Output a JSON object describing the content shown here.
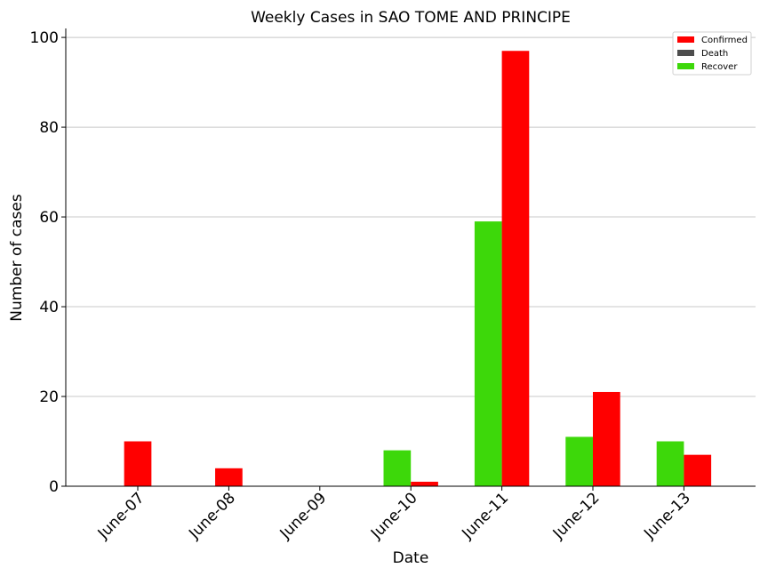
{
  "chart_data": {
    "type": "bar",
    "title": "Weekly Cases in SAO TOME AND PRINCIPE",
    "xlabel": "Date",
    "ylabel": "Number of cases",
    "categories": [
      "June-07",
      "June-08",
      "June-09",
      "June-10",
      "June-11",
      "June-12",
      "June-13"
    ],
    "series": [
      {
        "name": "Confirmed",
        "color": "#ff0000",
        "values": [
          10,
          4,
          0,
          1,
          97,
          21,
          7
        ]
      },
      {
        "name": "Death",
        "color": "#4d4d4d",
        "values": [
          0,
          0,
          0,
          0,
          0,
          0,
          0
        ]
      },
      {
        "name": "Recover",
        "color": "#3dd80a",
        "values": [
          0,
          0,
          0,
          8,
          59,
          11,
          10
        ]
      }
    ],
    "ylim": [
      0,
      102
    ],
    "yticks": [
      0,
      20,
      40,
      60,
      80,
      100
    ],
    "grid": "horizontal",
    "legend_position": "top-right"
  }
}
